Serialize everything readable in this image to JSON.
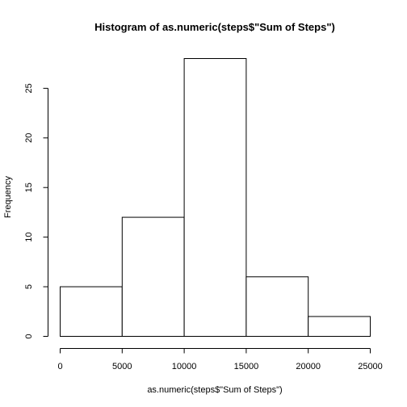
{
  "chart_data": {
    "type": "bar",
    "histogram": true,
    "title": "Histogram of as.numeric(steps$\"Sum of Steps\")",
    "xlabel": "as.numeric(steps$\"Sum of Steps\")",
    "ylabel": "Frequency",
    "bins": [
      {
        "start": 0,
        "end": 5000,
        "value": 5
      },
      {
        "start": 5000,
        "end": 10000,
        "value": 12
      },
      {
        "start": 10000,
        "end": 15000,
        "value": 28
      },
      {
        "start": 15000,
        "end": 20000,
        "value": 6
      },
      {
        "start": 20000,
        "end": 25000,
        "value": 2
      }
    ],
    "xlim": [
      0,
      25000
    ],
    "ylim": [
      0,
      28
    ],
    "x_ticks": [
      0,
      5000,
      10000,
      15000,
      20000,
      25000
    ],
    "x_tick_labels": [
      "0",
      "5000",
      "10000",
      "15000",
      "20000",
      "25000"
    ],
    "y_ticks": [
      0,
      5,
      10,
      15,
      20,
      25
    ],
    "y_tick_labels": [
      "0",
      "5",
      "10",
      "15",
      "20",
      "25"
    ],
    "grid": false,
    "bar_fill": "#ffffff",
    "bar_stroke": "#000000"
  }
}
